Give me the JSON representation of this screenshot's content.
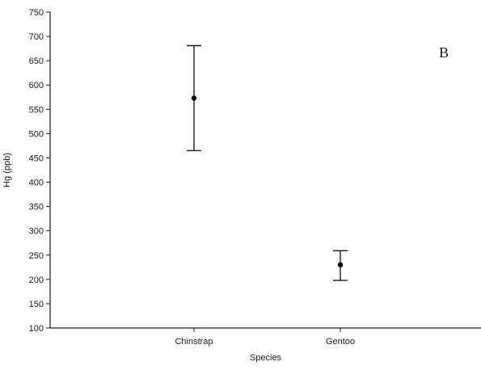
{
  "chart_data": {
    "type": "scatter",
    "panel_label": "B",
    "xlabel": "Species",
    "ylabel": "Hg (ppb)",
    "categories": [
      "Chinstrap",
      "Gentoo"
    ],
    "series": [
      {
        "points": [
          {
            "category": "Chinstrap",
            "y": 573,
            "lower": 465,
            "upper": 681
          },
          {
            "category": "Gentoo",
            "y": 230,
            "lower": 198,
            "upper": 259
          }
        ]
      }
    ],
    "ylim": [
      100,
      750
    ],
    "yticks": [
      100,
      150,
      200,
      250,
      300,
      350,
      400,
      450,
      500,
      550,
      600,
      650,
      700,
      750
    ],
    "grid": false,
    "colors": {
      "axis": "#1a1a1a",
      "marker": "#000000",
      "error_bar": "#1a1a1a"
    }
  }
}
